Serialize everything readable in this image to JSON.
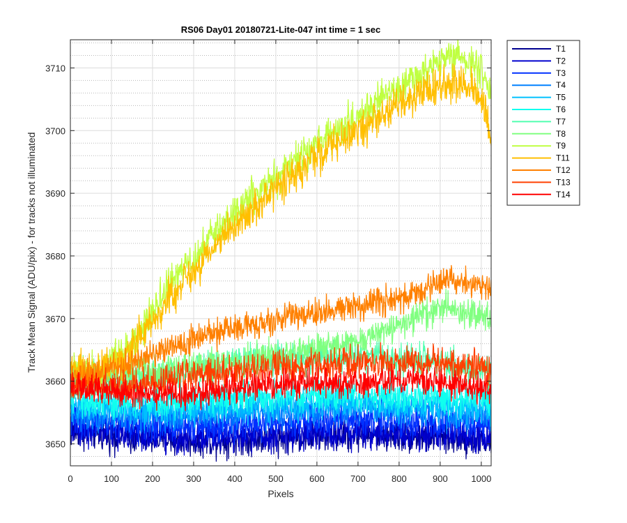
{
  "chart_data": {
    "type": "line",
    "title": "RS06 Day01 20180721-Lite-047 int time = 1 sec",
    "xlabel": "Pixels",
    "ylabel": "Track Mean Signal (ADU/pix) - for tracks not illuminated",
    "xlim": [
      0,
      1024
    ],
    "ylim": [
      3646.5,
      3714.5
    ],
    "x_ticks": [
      0,
      100,
      200,
      300,
      400,
      500,
      600,
      700,
      800,
      900,
      1000
    ],
    "y_ticks": [
      3650,
      3660,
      3670,
      3680,
      3690,
      3700,
      3710
    ],
    "grid": true,
    "minor_grid": true,
    "legend_position": "outside-right",
    "series": [
      {
        "name": "T1",
        "color": "#00008f",
        "noise": 1.6,
        "curve": [
          [
            0,
            3652
          ],
          [
            150,
            3651
          ],
          [
            300,
            3650.5
          ],
          [
            500,
            3651
          ],
          [
            700,
            3651.5
          ],
          [
            900,
            3651
          ],
          [
            1024,
            3650.5
          ]
        ]
      },
      {
        "name": "T2",
        "color": "#0000cf",
        "noise": 1.6,
        "curve": [
          [
            0,
            3652.5
          ],
          [
            150,
            3651.5
          ],
          [
            300,
            3651
          ],
          [
            500,
            3651.5
          ],
          [
            700,
            3652
          ],
          [
            900,
            3651.5
          ],
          [
            1024,
            3651
          ]
        ]
      },
      {
        "name": "T3",
        "color": "#0030ff",
        "noise": 1.6,
        "curve": [
          [
            0,
            3654
          ],
          [
            150,
            3653
          ],
          [
            300,
            3653
          ],
          [
            500,
            3653.5
          ],
          [
            700,
            3654
          ],
          [
            900,
            3653.5
          ],
          [
            1024,
            3653
          ]
        ]
      },
      {
        "name": "T4",
        "color": "#0080ff",
        "noise": 1.6,
        "curve": [
          [
            0,
            3655
          ],
          [
            150,
            3654.5
          ],
          [
            300,
            3654.5
          ],
          [
            500,
            3655
          ],
          [
            700,
            3655.5
          ],
          [
            900,
            3655
          ],
          [
            1024,
            3654.5
          ]
        ]
      },
      {
        "name": "T5",
        "color": "#00c0ff",
        "noise": 1.6,
        "curve": [
          [
            0,
            3656
          ],
          [
            150,
            3655.5
          ],
          [
            300,
            3655.5
          ],
          [
            500,
            3656
          ],
          [
            700,
            3656.5
          ],
          [
            900,
            3656
          ],
          [
            1024,
            3655.5
          ]
        ]
      },
      {
        "name": "T6",
        "color": "#10ffef",
        "noise": 1.6,
        "curve": [
          [
            0,
            3657
          ],
          [
            150,
            3656.5
          ],
          [
            300,
            3657
          ],
          [
            500,
            3657.5
          ],
          [
            700,
            3658
          ],
          [
            900,
            3657.5
          ],
          [
            1024,
            3657
          ]
        ]
      },
      {
        "name": "T7",
        "color": "#50ffaf",
        "noise": 1.6,
        "curve": [
          [
            0,
            3660
          ],
          [
            150,
            3660
          ],
          [
            300,
            3662
          ],
          [
            500,
            3663.5
          ],
          [
            700,
            3664
          ],
          [
            900,
            3663
          ],
          [
            1024,
            3661
          ]
        ]
      },
      {
        "name": "T8",
        "color": "#80ff80",
        "noise": 1.5,
        "curve": [
          [
            0,
            3661
          ],
          [
            150,
            3661
          ],
          [
            300,
            3662.5
          ],
          [
            500,
            3664
          ],
          [
            700,
            3666
          ],
          [
            800,
            3669
          ],
          [
            900,
            3671.5
          ],
          [
            980,
            3671
          ],
          [
            1024,
            3670
          ]
        ]
      },
      {
        "name": "T9",
        "color": "#bfff40",
        "noise": 1.8,
        "curve": [
          [
            0,
            3662
          ],
          [
            60,
            3661.5
          ],
          [
            150,
            3666
          ],
          [
            250,
            3676
          ],
          [
            400,
            3687
          ],
          [
            600,
            3698
          ],
          [
            800,
            3707
          ],
          [
            900,
            3711
          ],
          [
            950,
            3712
          ],
          [
            1000,
            3710
          ],
          [
            1024,
            3706
          ]
        ]
      },
      {
        "name": "T11",
        "color": "#ffbf00",
        "noise": 1.8,
        "curve": [
          [
            0,
            3662
          ],
          [
            60,
            3661
          ],
          [
            150,
            3665
          ],
          [
            250,
            3674
          ],
          [
            400,
            3685
          ],
          [
            600,
            3696
          ],
          [
            800,
            3704
          ],
          [
            900,
            3707.5
          ],
          [
            950,
            3707.5
          ],
          [
            1000,
            3705
          ],
          [
            1024,
            3699
          ]
        ]
      },
      {
        "name": "T12",
        "color": "#ff8000",
        "noise": 1.4,
        "curve": [
          [
            0,
            3660
          ],
          [
            150,
            3663
          ],
          [
            300,
            3667
          ],
          [
            500,
            3670
          ],
          [
            700,
            3672
          ],
          [
            850,
            3674
          ],
          [
            920,
            3676.5
          ],
          [
            1024,
            3675
          ]
        ]
      },
      {
        "name": "T13",
        "color": "#ff4000",
        "noise": 1.5,
        "curve": [
          [
            0,
            3659
          ],
          [
            150,
            3659.5
          ],
          [
            300,
            3661
          ],
          [
            500,
            3662
          ],
          [
            700,
            3663
          ],
          [
            900,
            3663
          ],
          [
            1024,
            3662
          ]
        ]
      },
      {
        "name": "T14",
        "color": "#ff0000",
        "noise": 1.4,
        "curve": [
          [
            0,
            3659
          ],
          [
            150,
            3658
          ],
          [
            300,
            3658
          ],
          [
            500,
            3659.5
          ],
          [
            700,
            3660
          ],
          [
            850,
            3660
          ],
          [
            1024,
            3659
          ]
        ]
      }
    ]
  }
}
